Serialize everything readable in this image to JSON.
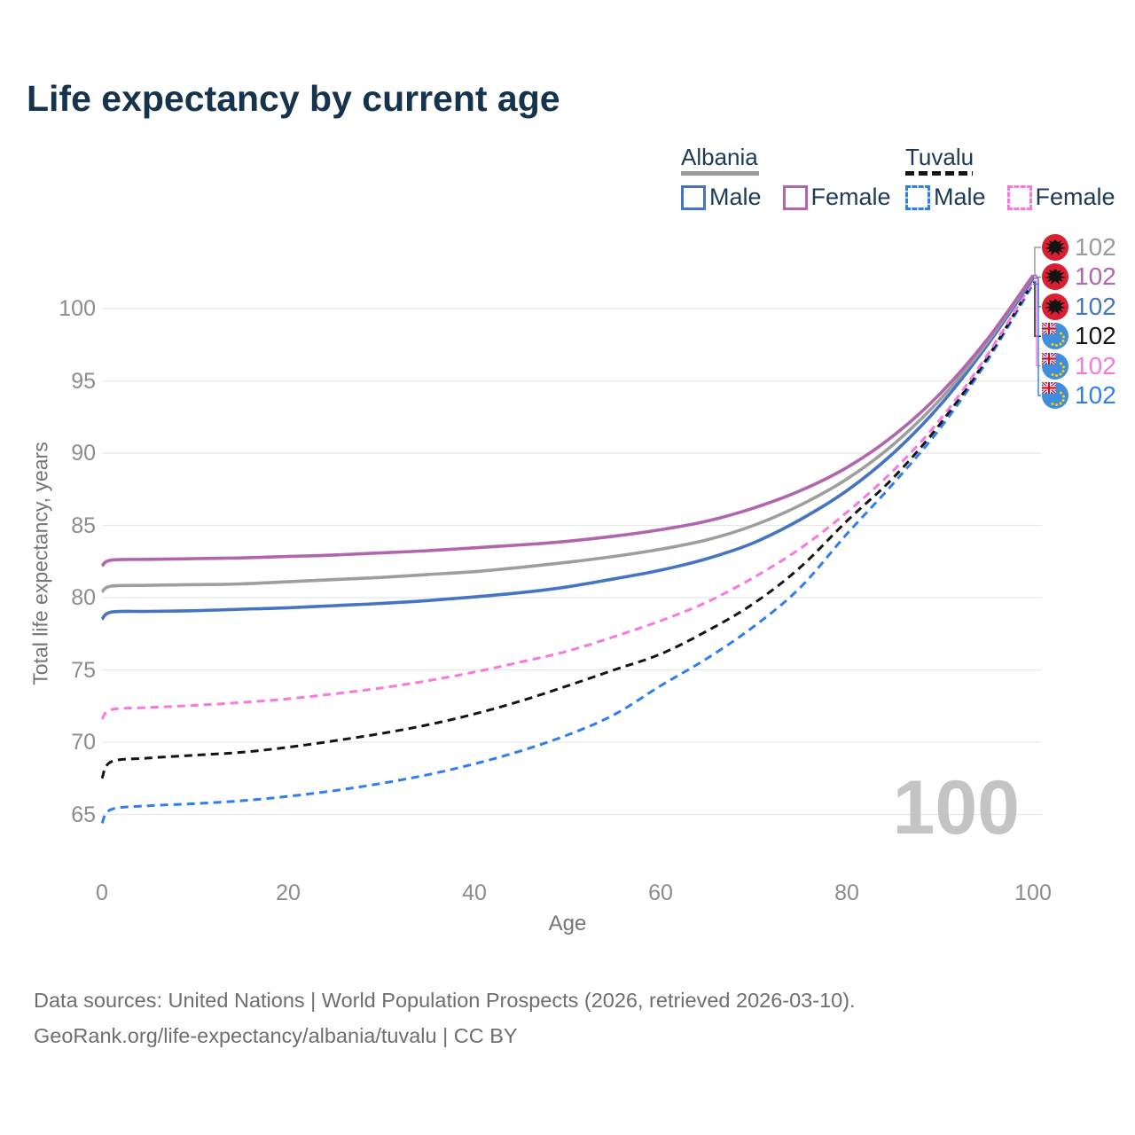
{
  "title": "Life expectancy by current age",
  "watermark": "100",
  "legend": {
    "groups": [
      {
        "label": "Albania",
        "line_style": "solid",
        "underline_color": "#9a9a9a",
        "items": [
          {
            "label": "Male",
            "color": "#4574c0"
          },
          {
            "label": "Female",
            "color": "#b165ad"
          }
        ]
      },
      {
        "label": "Tuvalu",
        "line_style": "dashed",
        "underline_color": "#141414",
        "items": [
          {
            "label": "Male",
            "color": "#2f7ef0"
          },
          {
            "label": "Female",
            "color": "#fa78dd"
          }
        ]
      }
    ]
  },
  "end_labels": [
    {
      "flag": "albania",
      "series": "Albania",
      "value": "102",
      "color": "#9a9a9a"
    },
    {
      "flag": "albania",
      "series": "Albania Female",
      "value": "102",
      "color": "#b165ad"
    },
    {
      "flag": "albania",
      "series": "Albania Male",
      "value": "102",
      "color": "#4574c0"
    },
    {
      "flag": "tuvalu",
      "series": "Tuvalu",
      "value": "102",
      "color": "#141414"
    },
    {
      "flag": "tuvalu",
      "series": "Tuvalu Female",
      "value": "102",
      "color": "#fa78dd"
    },
    {
      "flag": "tuvalu",
      "series": "Tuvalu Male",
      "value": "102",
      "color": "#2f7ef0"
    }
  ],
  "footer": {
    "line1": "Data sources: United Nations | World Population Prospects (2026, retrieved 2026-03-10).",
    "line2": "GeoRank.org/life-expectancy/albania/tuvalu | CC BY"
  },
  "chart_data": {
    "type": "line",
    "title": "Life expectancy by current age",
    "xlabel": "Age",
    "ylabel": "Total life expectancy, years",
    "xlim": [
      0,
      100
    ],
    "ylim": [
      63.5,
      103
    ],
    "xticks": [
      0,
      20,
      40,
      60,
      80,
      100
    ],
    "yticks": [
      65,
      70,
      75,
      80,
      85,
      90,
      95,
      100
    ],
    "grid": "horizontal",
    "legend_position": "top-right",
    "x": [
      0,
      1,
      5,
      10,
      15,
      20,
      25,
      30,
      35,
      40,
      45,
      50,
      55,
      60,
      65,
      70,
      75,
      80,
      85,
      90,
      95,
      100
    ],
    "series": [
      {
        "name": "Tuvalu Male",
        "country": "Tuvalu",
        "sex": "Male",
        "style": "dashed",
        "color": "#2f7ef0",
        "values": [
          64.4,
          65.35,
          65.6,
          65.75,
          65.95,
          66.25,
          66.65,
          67.15,
          67.75,
          68.5,
          69.4,
          70.5,
          71.9,
          73.9,
          75.8,
          78.0,
          80.7,
          84.4,
          87.9,
          91.7,
          96.3,
          101.7
        ]
      },
      {
        "name": "Tuvalu",
        "country": "Tuvalu",
        "sex": "Both",
        "style": "dashed",
        "color": "#141414",
        "values": [
          67.5,
          68.65,
          68.9,
          69.1,
          69.3,
          69.65,
          70.1,
          70.6,
          71.2,
          71.95,
          72.85,
          73.9,
          75.0,
          76.1,
          77.7,
          79.6,
          82.1,
          85.3,
          88.3,
          92.0,
          96.5,
          101.85
        ]
      },
      {
        "name": "Tuvalu Female",
        "country": "Tuvalu",
        "sex": "Female",
        "style": "dashed",
        "color": "#fa78dd",
        "values": [
          71.6,
          72.25,
          72.4,
          72.55,
          72.75,
          73.0,
          73.35,
          73.75,
          74.25,
          74.85,
          75.55,
          76.3,
          77.3,
          78.4,
          79.7,
          81.4,
          83.4,
          85.9,
          88.8,
          92.3,
          96.7,
          101.9
        ]
      },
      {
        "name": "Albania Male",
        "country": "Albania",
        "sex": "Male",
        "style": "solid",
        "color": "#4574c0",
        "values": [
          78.5,
          79.0,
          79.05,
          79.1,
          79.2,
          79.3,
          79.45,
          79.6,
          79.8,
          80.05,
          80.35,
          80.75,
          81.3,
          81.9,
          82.7,
          83.8,
          85.4,
          87.4,
          90.0,
          93.3,
          97.4,
          102.1
        ]
      },
      {
        "name": "Albania",
        "country": "Albania",
        "sex": "Both",
        "style": "solid",
        "color": "#9e9e9e",
        "values": [
          80.4,
          80.8,
          80.85,
          80.9,
          80.95,
          81.1,
          81.25,
          81.4,
          81.6,
          81.8,
          82.1,
          82.45,
          82.85,
          83.35,
          84.0,
          85.0,
          86.4,
          88.2,
          90.6,
          93.7,
          97.6,
          102.25
        ]
      },
      {
        "name": "Albania Female",
        "country": "Albania",
        "sex": "Female",
        "style": "solid",
        "color": "#b165ad",
        "values": [
          82.2,
          82.6,
          82.65,
          82.7,
          82.75,
          82.85,
          82.95,
          83.1,
          83.25,
          83.45,
          83.65,
          83.9,
          84.25,
          84.7,
          85.3,
          86.2,
          87.4,
          89.0,
          91.2,
          94.1,
          97.8,
          102.3
        ]
      }
    ]
  }
}
